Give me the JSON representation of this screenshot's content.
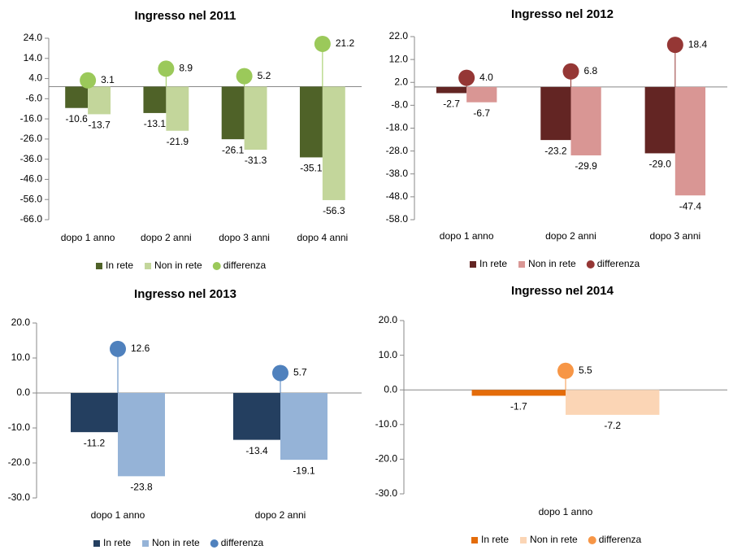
{
  "chart_data": [
    {
      "type": "bar",
      "title": "Ingresso nel 2011",
      "categories": [
        "dopo 1 anno",
        "dopo 2 anni",
        "dopo 3 anni",
        "dopo 4 anni"
      ],
      "series": [
        {
          "name": "In rete",
          "color": "#4f6228",
          "values": [
            -10.6,
            -13.1,
            -26.1,
            -35.1
          ]
        },
        {
          "name": "Non in rete",
          "color": "#c3d69b",
          "values": [
            -13.7,
            -21.9,
            -31.3,
            -56.3
          ]
        },
        {
          "name": "differenza",
          "type": "lollipop",
          "color": "#9bc95a",
          "values": [
            3.1,
            8.9,
            5.2,
            21.2
          ]
        }
      ],
      "ylim": [
        -66,
        24
      ],
      "yticks": [
        {
          "value": 24,
          "label": "24.0"
        },
        {
          "value": 14,
          "label": "14.0"
        },
        {
          "value": 4,
          "label": "4.0"
        },
        {
          "value": -6,
          "label": "-6.0"
        },
        {
          "value": -16,
          "label": "-16.0"
        },
        {
          "value": -26,
          "label": "-26.0"
        },
        {
          "value": -36,
          "label": "-36.0"
        },
        {
          "value": -46,
          "label": "-46.0"
        },
        {
          "value": -56,
          "label": "-56.0"
        },
        {
          "value": -66,
          "label": "-66.0"
        }
      ]
    },
    {
      "type": "bar",
      "title": "Ingresso nel 2012",
      "categories": [
        "dopo 1 anno",
        "dopo 2 anni",
        "dopo 3 anni"
      ],
      "series": [
        {
          "name": "In rete",
          "color": "#632523",
          "values": [
            -2.7,
            -23.2,
            -29.0
          ],
          "value_labels": [
            "-2.7",
            "-23.2",
            "-29.0"
          ]
        },
        {
          "name": "Non in rete",
          "color": "#d99694",
          "values": [
            -6.7,
            -29.9,
            -47.4
          ]
        },
        {
          "name": "differenza",
          "type": "lollipop",
          "color": "#953735",
          "values": [
            4.0,
            6.8,
            18.4
          ],
          "value_labels": [
            "4.0",
            "6.8",
            "18.4"
          ]
        }
      ],
      "ylim": [
        -58,
        22
      ],
      "yticks": [
        {
          "value": 22,
          "label": "22.0"
        },
        {
          "value": 12,
          "label": "12.0"
        },
        {
          "value": 2,
          "label": "2.0"
        },
        {
          "value": -8,
          "label": "-8.0"
        },
        {
          "value": -18,
          "label": "-18.0"
        },
        {
          "value": -28,
          "label": "-28.0"
        },
        {
          "value": -38,
          "label": "-38.0"
        },
        {
          "value": -48,
          "label": "-48.0"
        },
        {
          "value": -58,
          "label": "-58.0"
        }
      ]
    },
    {
      "type": "bar",
      "title": "Ingresso nel 2013",
      "categories": [
        "dopo 1 anno",
        "dopo 2 anni"
      ],
      "series": [
        {
          "name": "In rete",
          "color": "#243f60",
          "values": [
            -11.2,
            -13.4
          ]
        },
        {
          "name": "Non in rete",
          "color": "#95b3d7",
          "values": [
            -23.8,
            -19.1
          ]
        },
        {
          "name": "differenza",
          "type": "lollipop",
          "color": "#4f81bd",
          "values": [
            12.6,
            5.7
          ]
        }
      ],
      "ylim": [
        -30,
        20
      ],
      "yticks": [
        {
          "value": 20,
          "label": "20.0"
        },
        {
          "value": 10,
          "label": "10.0"
        },
        {
          "value": 0,
          "label": "0.0"
        },
        {
          "value": -10,
          "label": "-10.0"
        },
        {
          "value": -20,
          "label": "-20.0"
        },
        {
          "value": -30,
          "label": "-30.0"
        }
      ]
    },
    {
      "type": "bar",
      "title": "Ingresso nel 2014",
      "categories": [
        "dopo 1 anno"
      ],
      "series": [
        {
          "name": "In rete",
          "color": "#e46c0a",
          "values": [
            -1.7
          ]
        },
        {
          "name": "Non in rete",
          "color": "#fbd5b5",
          "values": [
            -7.2
          ]
        },
        {
          "name": "differenza",
          "type": "lollipop",
          "color": "#f79646",
          "values": [
            5.5
          ]
        }
      ],
      "ylim": [
        -30,
        20
      ],
      "yticks": [
        {
          "value": 20,
          "label": "20.0"
        },
        {
          "value": 10,
          "label": "10.0"
        },
        {
          "value": 0,
          "label": "0.0"
        },
        {
          "value": -10,
          "label": "-10.0"
        },
        {
          "value": -20,
          "label": "-20.0"
        },
        {
          "value": -30,
          "label": "-30.0"
        }
      ]
    }
  ]
}
